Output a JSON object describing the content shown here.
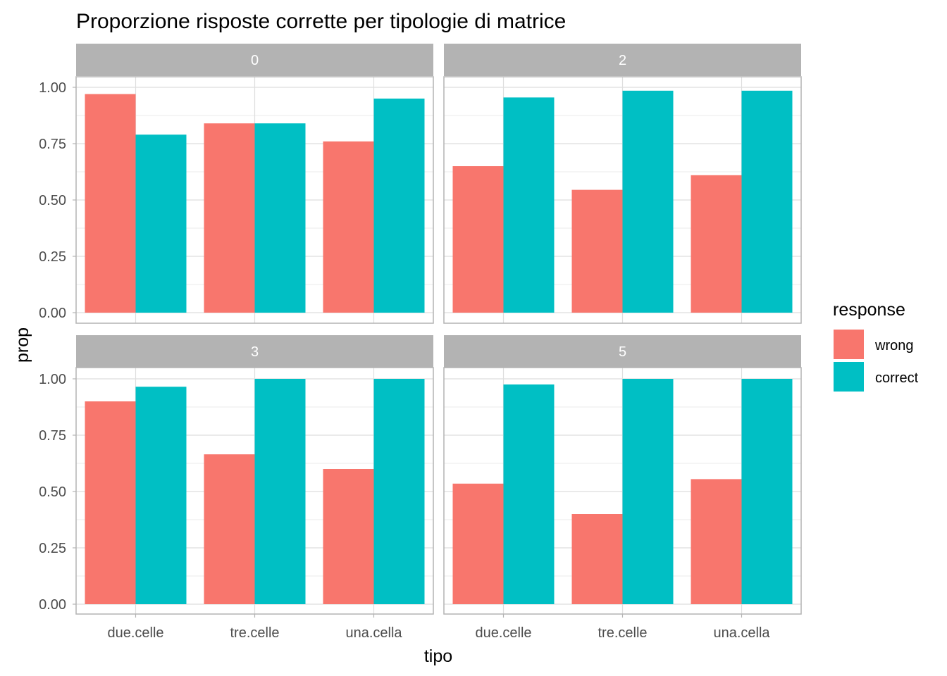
{
  "chart_data": {
    "type": "bar",
    "title": "Proporzione risposte corrette per tipologie di matrice",
    "xlabel": "tipo",
    "ylabel": "prop",
    "ylim": [
      0,
      1.0
    ],
    "yticks": [
      "0.00",
      "0.25",
      "0.50",
      "0.75",
      "1.00"
    ],
    "categories": [
      "due.celle",
      "tre.celle",
      "una.cella"
    ],
    "legend": {
      "title": "response",
      "position": "right",
      "entries": [
        {
          "label": "wrong",
          "color": "#F8766D"
        },
        {
          "label": "correct",
          "color": "#00BFC4"
        }
      ]
    },
    "grid": true,
    "facets": [
      {
        "label": "0",
        "series": [
          {
            "name": "wrong",
            "values": [
              0.97,
              0.84,
              0.76
            ]
          },
          {
            "name": "correct",
            "values": [
              0.79,
              0.84,
              0.95
            ]
          }
        ]
      },
      {
        "label": "2",
        "series": [
          {
            "name": "wrong",
            "values": [
              0.65,
              0.545,
              0.61
            ]
          },
          {
            "name": "correct",
            "values": [
              0.955,
              0.985,
              0.985
            ]
          }
        ]
      },
      {
        "label": "3",
        "series": [
          {
            "name": "wrong",
            "values": [
              0.9,
              0.665,
              0.6
            ]
          },
          {
            "name": "correct",
            "values": [
              0.965,
              1.0,
              1.0
            ]
          }
        ]
      },
      {
        "label": "5",
        "series": [
          {
            "name": "wrong",
            "values": [
              0.535,
              0.4,
              0.555
            ]
          },
          {
            "name": "correct",
            "values": [
              0.975,
              1.0,
              1.0
            ]
          }
        ]
      }
    ]
  }
}
